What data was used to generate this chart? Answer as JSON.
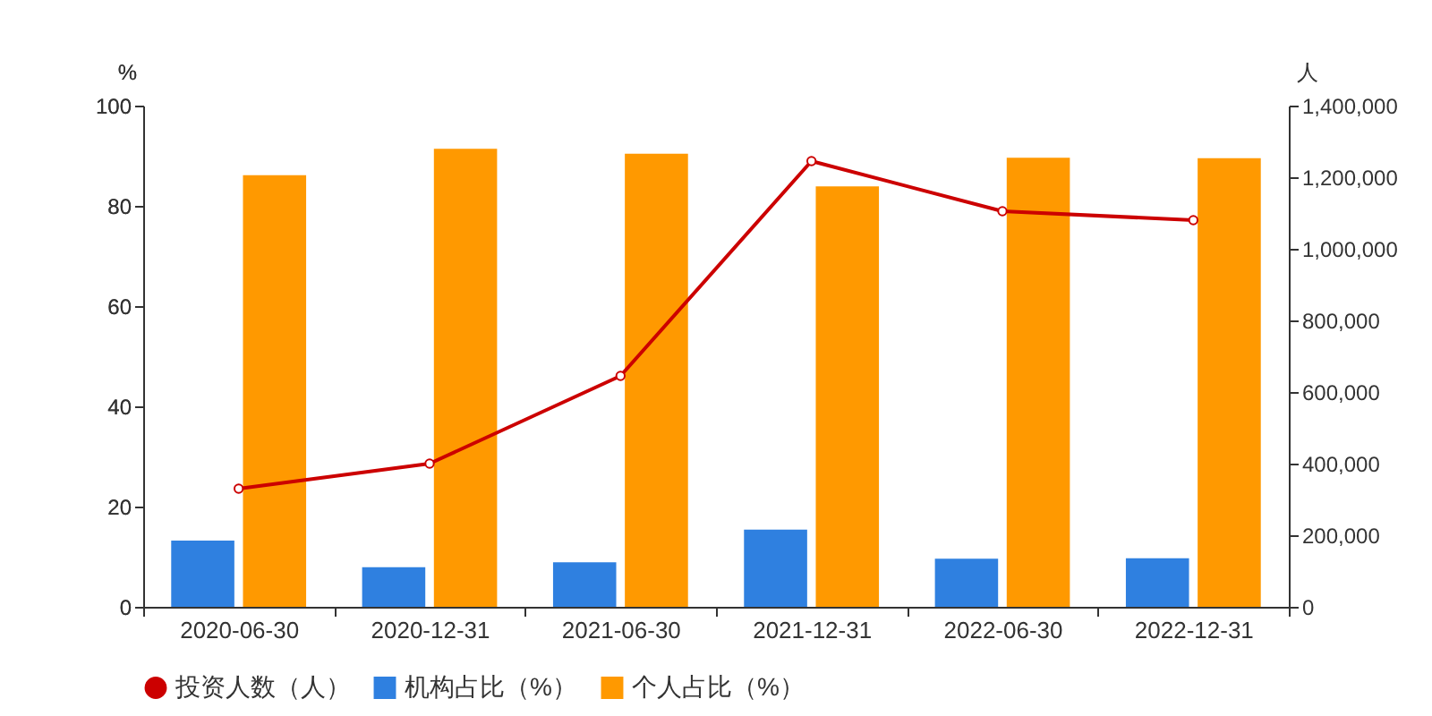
{
  "chart_data": {
    "type": "bar",
    "categories": [
      "2020-06-30",
      "2020-12-31",
      "2021-06-30",
      "2021-12-31",
      "2022-06-30",
      "2022-12-31"
    ],
    "ylabel": "%",
    "y2label": "人",
    "ylim": [
      0,
      100
    ],
    "yticks": [
      0,
      20,
      40,
      60,
      80,
      100
    ],
    "y2lim": [
      0,
      1400000
    ],
    "y2ticks": [
      0,
      {
        "value": 200000,
        "label": "200,000"
      },
      {
        "value": 400000,
        "label": "400,000"
      },
      {
        "value": 600000,
        "label": "600,000"
      },
      {
        "value": 800000,
        "label": "800,000"
      },
      {
        "value": 1000000,
        "label": "1,000,000"
      },
      {
        "value": 1200000,
        "label": "1,200,000"
      },
      {
        "value": 1400000,
        "label": "1,400,000"
      }
    ],
    "legend": "bottom",
    "marker": "circle",
    "series": [
      {
        "name": "投资人数（人）",
        "type": "line",
        "axis": "y2",
        "color": "#cc0000",
        "values": [
          330000,
          400000,
          645000,
          1245000,
          1105000,
          1080000
        ]
      },
      {
        "name": "机构占比（%）",
        "color": "#2f80e0",
        "values": [
          13.2,
          7.9,
          8.9,
          15.4,
          9.6,
          9.7
        ]
      },
      {
        "name": "个人占比（%）",
        "color": "#ff9900",
        "values": [
          86.1,
          91.4,
          90.4,
          83.9,
          89.6,
          89.5
        ]
      }
    ]
  }
}
